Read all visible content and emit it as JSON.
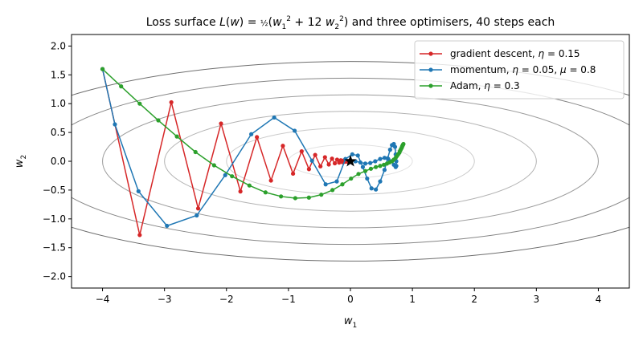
{
  "chart_data": {
    "type": "line",
    "title": "Loss surface L(w) = ½(w₁² + 12 w₂²) and three optimisers, 40 steps each",
    "xlabel": "w₁",
    "ylabel": "w₂",
    "xlim": [
      -4.5,
      4.5
    ],
    "ylim": [
      -2.2,
      2.2
    ],
    "xticks": [
      "−4",
      "−3",
      "−2",
      "−1",
      "0",
      "1",
      "2",
      "3",
      "4"
    ],
    "xtick_values": [
      -4,
      -3,
      -2,
      -1,
      0,
      1,
      2,
      3,
      4
    ],
    "yticks": [
      "−2.0",
      "−1.5",
      "−1.0",
      "−0.5",
      "0.0",
      "0.5",
      "1.0",
      "1.5",
      "2.0"
    ],
    "ytick_values": [
      -2.0,
      -1.5,
      -1.0,
      -0.5,
      0.0,
      0.5,
      1.0,
      1.5,
      2.0
    ],
    "grid": false,
    "legend_position": "top-right",
    "contour_levels": [
      0.5,
      2,
      4.5,
      8,
      12.5,
      18
    ],
    "minimum_marker": {
      "x": 0,
      "y": 0,
      "color": "#000000"
    },
    "series": [
      {
        "name": "gradient descent, η = 0.15",
        "color": "#d62728",
        "x": [
          -4.0,
          -3.4,
          -2.89,
          -2.457,
          -2.088,
          -1.775,
          -1.509,
          -1.282,
          -1.09,
          -0.926,
          -0.787,
          -0.669,
          -0.569,
          -0.484,
          -0.411,
          -0.349,
          -0.297,
          -0.252,
          -0.215,
          -0.182,
          -0.155,
          -0.132,
          -0.112,
          -0.095,
          -0.081,
          -0.069,
          -0.058,
          -0.05,
          -0.042,
          -0.036,
          -0.031,
          -0.026,
          -0.022,
          -0.019,
          -0.016,
          -0.014,
          -0.012,
          -0.01,
          -0.0085,
          -0.0072
        ],
        "y": [
          1.6,
          -1.28,
          1.024,
          -0.819,
          0.655,
          -0.524,
          0.419,
          -0.335,
          0.268,
          -0.215,
          0.172,
          -0.137,
          0.11,
          -0.088,
          0.07,
          -0.056,
          0.045,
          -0.036,
          0.029,
          -0.023,
          0.018,
          -0.015,
          0.012,
          -0.009,
          0.0075,
          -0.006,
          0.0048,
          -0.0038,
          0.0031,
          -0.0025,
          0.002,
          -0.0016,
          0.0013,
          -0.001,
          0.0008,
          -0.0006,
          0.0005,
          -0.0004,
          0.0003,
          -0.0003
        ]
      },
      {
        "name": "momentum, η = 0.05, μ = 0.8",
        "color": "#1f77b4",
        "x": [
          -4.0,
          -3.8,
          -3.42,
          -2.96,
          -2.48,
          -2.02,
          -1.6,
          -1.23,
          -0.9,
          -0.62,
          -0.4,
          -0.22,
          -0.08,
          0.03,
          0.12,
          0.2,
          0.27,
          0.34,
          0.41,
          0.48,
          0.55,
          0.6,
          0.64,
          0.67,
          0.7,
          0.72,
          0.73,
          0.74,
          0.74,
          0.73,
          0.7,
          0.66,
          0.61,
          0.55,
          0.48,
          0.4,
          0.32,
          0.24,
          0.16,
          0.08
        ],
        "y": [
          1.6,
          0.64,
          -0.52,
          -1.12,
          -0.94,
          -0.24,
          0.47,
          0.76,
          0.53,
          0.01,
          -0.4,
          -0.35,
          0.04,
          0.12,
          0.1,
          -0.1,
          -0.3,
          -0.47,
          -0.49,
          -0.35,
          -0.15,
          0.05,
          0.2,
          0.28,
          0.3,
          0.25,
          0.12,
          0.0,
          -0.08,
          -0.1,
          -0.06,
          0.0,
          0.04,
          0.06,
          0.04,
          0.0,
          -0.03,
          -0.04,
          -0.02,
          0.0
        ]
      },
      {
        "name": "Adam, η = 0.3",
        "color": "#2ca02c",
        "x": [
          -4.0,
          -3.7,
          -3.4,
          -3.1,
          -2.8,
          -2.5,
          -2.2,
          -1.91,
          -1.63,
          -1.37,
          -1.12,
          -0.89,
          -0.67,
          -0.47,
          -0.29,
          -0.13,
          0.01,
          0.13,
          0.24,
          0.33,
          0.41,
          0.48,
          0.54,
          0.59,
          0.63,
          0.67,
          0.7,
          0.73,
          0.75,
          0.77,
          0.79,
          0.8,
          0.81,
          0.82,
          0.83,
          0.835,
          0.84,
          0.845,
          0.85,
          0.855
        ],
        "y": [
          1.6,
          1.3,
          1.0,
          0.71,
          0.43,
          0.16,
          -0.07,
          -0.26,
          -0.42,
          -0.54,
          -0.61,
          -0.64,
          -0.63,
          -0.58,
          -0.5,
          -0.4,
          -0.3,
          -0.22,
          -0.17,
          -0.13,
          -0.1,
          -0.08,
          -0.06,
          -0.04,
          -0.02,
          0.0,
          0.03,
          0.06,
          0.09,
          0.12,
          0.15,
          0.18,
          0.2,
          0.22,
          0.24,
          0.26,
          0.27,
          0.28,
          0.29,
          0.3
        ]
      }
    ]
  }
}
